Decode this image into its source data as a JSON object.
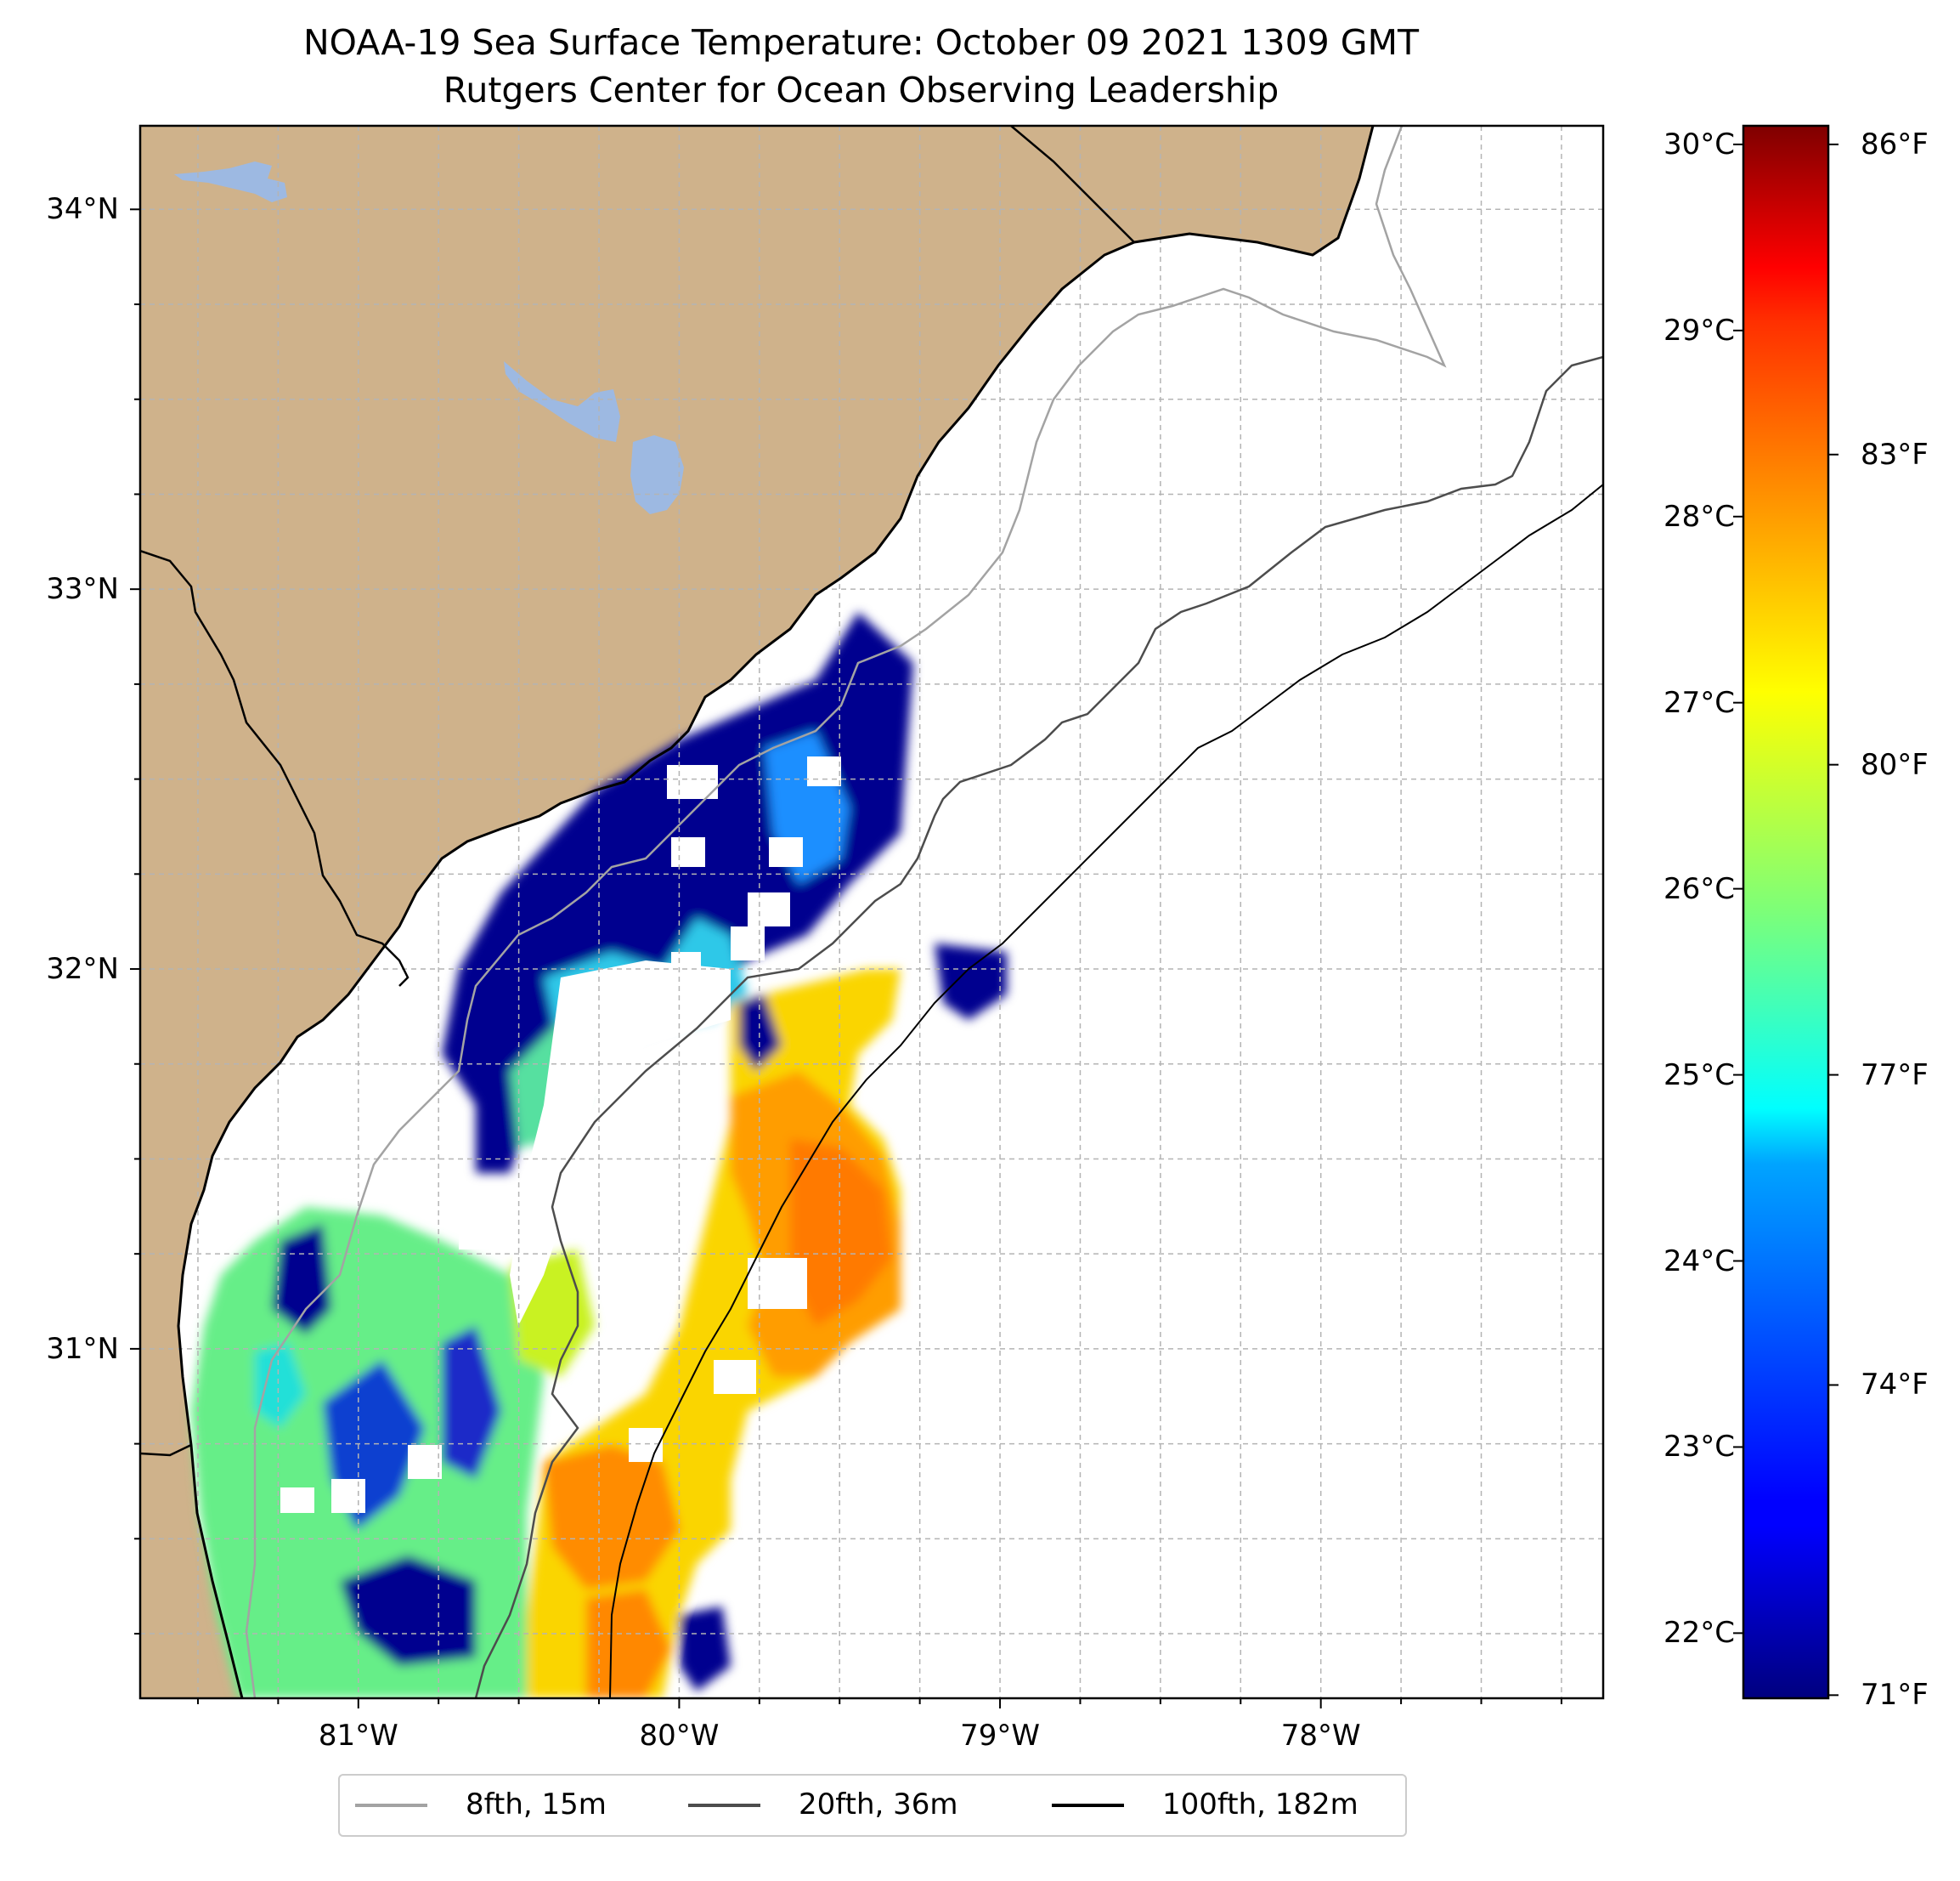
{
  "title": {
    "line1": "NOAA-19 Sea Surface Temperature: October 09 2021 1309 GMT",
    "line2": "Rutgers Center for Ocean Observing Leadership"
  },
  "map": {
    "extent": {
      "lon": [
        -81.68,
        -77.12
      ],
      "lat": [
        30.08,
        34.22
      ]
    },
    "colors": {
      "land": "#cfb28b",
      "lake": "#9db9e2",
      "ocean": "#ffffff",
      "coast": "#000000",
      "grid": "#b4b4b4"
    },
    "lat_ticks": [
      {
        "value": 31,
        "label": "31°N"
      },
      {
        "value": 32,
        "label": "32°N"
      },
      {
        "value": 33,
        "label": "33°N"
      },
      {
        "value": 34,
        "label": "34°N"
      }
    ],
    "lon_ticks": [
      {
        "value": -81,
        "label": "81°W"
      },
      {
        "value": -80,
        "label": "80°W"
      },
      {
        "value": -79,
        "label": "79°W"
      },
      {
        "value": -78,
        "label": "78°W"
      }
    ],
    "isobaths": [
      {
        "label": "8fth, 15m",
        "color": "#a3a3a3"
      },
      {
        "label": "20fth, 36m",
        "color": "#4d4d4d"
      },
      {
        "label": "100fth, 182m",
        "color": "#000000"
      }
    ]
  },
  "colorbar": {
    "colormap": "jet",
    "range_c": [
      21.65,
      30.1
    ],
    "celsius_ticks": [
      {
        "value": 22,
        "label": "22°C"
      },
      {
        "value": 23,
        "label": "23°C"
      },
      {
        "value": 24,
        "label": "24°C"
      },
      {
        "value": 25,
        "label": "25°C"
      },
      {
        "value": 26,
        "label": "26°C"
      },
      {
        "value": 27,
        "label": "27°C"
      },
      {
        "value": 28,
        "label": "28°C"
      },
      {
        "value": 29,
        "label": "29°C"
      },
      {
        "value": 30,
        "label": "30°C"
      }
    ],
    "fahrenheit_ticks": [
      {
        "value": 71,
        "label": "71°F"
      },
      {
        "value": 74,
        "label": "74°F"
      },
      {
        "value": 77,
        "label": "77°F"
      },
      {
        "value": 80,
        "label": "80°F"
      },
      {
        "value": 83,
        "label": "83°F"
      },
      {
        "value": 86,
        "label": "86°F"
      }
    ]
  },
  "legend": {
    "items": [
      {
        "label": "8fth, 15m",
        "color": "#a3a3a3"
      },
      {
        "label": "20fth, 36m",
        "color": "#4d4d4d"
      },
      {
        "label": "100fth, 182m",
        "color": "#000000"
      }
    ]
  }
}
